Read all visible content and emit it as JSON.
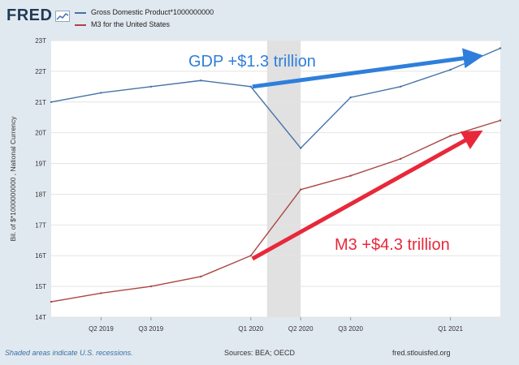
{
  "header": {
    "logo_text": "FRED",
    "logo_icon": "chart-line-icon"
  },
  "chart_data": {
    "type": "line",
    "title": "",
    "xlabel": "",
    "ylabel": "Bil. of $*1000000000 , National Currency",
    "x": [
      "2019-Q1",
      "2019-Q2",
      "2019-Q3",
      "2019-Q4",
      "2020-Q1",
      "2020-Q2",
      "2020-Q3",
      "2020-Q4",
      "2021-Q1",
      "2021-Q2"
    ],
    "x_tick_labels": [
      {
        "x": "2019-Q2",
        "label": "Q2 2019"
      },
      {
        "x": "2019-Q3",
        "label": "Q3 2019"
      },
      {
        "x": "2020-Q1",
        "label": "Q1 2020"
      },
      {
        "x": "2020-Q2",
        "label": "Q2 2020"
      },
      {
        "x": "2020-Q3",
        "label": "Q3 2020"
      },
      {
        "x": "2021-Q1",
        "label": "Q1 2021"
      }
    ],
    "y_ticks": [
      "14T",
      "15T",
      "16T",
      "17T",
      "18T",
      "19T",
      "20T",
      "21T",
      "22T",
      "23T"
    ],
    "ylim": [
      14,
      23
    ],
    "series": [
      {
        "name": "Gross Domestic Product*1000000000",
        "color": "#4572a7",
        "values": [
          21.0,
          21.3,
          21.5,
          21.7,
          21.5,
          19.5,
          21.15,
          21.5,
          22.05,
          22.75
        ]
      },
      {
        "name": "M3 for the United States",
        "color": "#aa4643",
        "values": [
          14.5,
          14.78,
          15.0,
          15.32,
          16.0,
          18.15,
          18.6,
          19.15,
          19.9,
          20.4
        ]
      }
    ],
    "recession": {
      "start": "2020-Q1",
      "end": "2020-Q2",
      "color": "#e1e1e1"
    },
    "annotations": [
      {
        "text": "GDP +$1.3 trillion",
        "color": "#2e7fdb",
        "from": [
          "2020-Q1",
          21.5
        ],
        "to": [
          "2021-Q2",
          22.75
        ]
      },
      {
        "text": "M3 +$4.3 trillion",
        "color": "#e8283a",
        "from": [
          "2020-Q1",
          15.9
        ],
        "to": [
          "2021-Q2",
          20.4
        ]
      }
    ]
  },
  "footer": {
    "note": "Shaded areas indicate U.S. recessions.",
    "sources": "Sources: BEA; OECD",
    "site": "fred.stlouisfed.org"
  }
}
